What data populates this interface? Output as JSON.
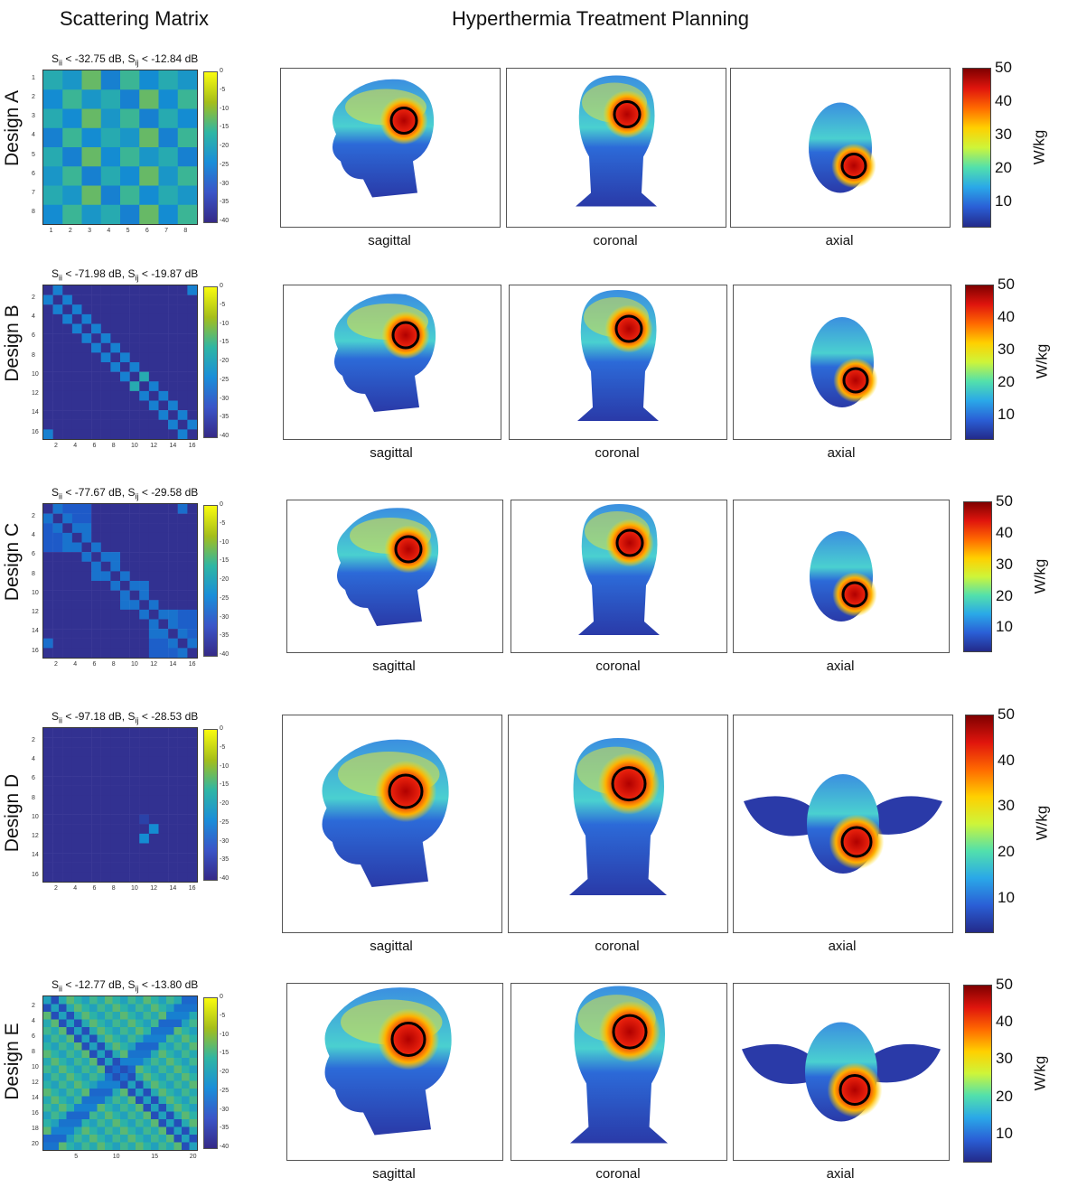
{
  "headers": {
    "left": "Scattering Matrix",
    "right": "Hyperthermia Treatment Planning"
  },
  "colorbar_small_ticks": [
    "0",
    "-5",
    "-10",
    "-15",
    "-20",
    "-25",
    "-30",
    "-35",
    "-40"
  ],
  "colorbar_big": {
    "ticks": [
      "50",
      "40",
      "30",
      "20",
      "10"
    ],
    "unit": "W/kg"
  },
  "views": [
    "sagittal",
    "coronal",
    "axial"
  ],
  "rows": [
    {
      "design": "Design A",
      "sii": "-32.75",
      "sij": "-12.84",
      "n": 8,
      "xticks": [
        "1",
        "2",
        "3",
        "4",
        "5",
        "6",
        "7",
        "8"
      ],
      "yticks": [
        "1",
        "2",
        "3",
        "4",
        "5",
        "6",
        "7",
        "8"
      ]
    },
    {
      "design": "Design B",
      "sii": "-71.98",
      "sij": "-19.87",
      "n": 16,
      "xticks": [
        "2",
        "4",
        "6",
        "8",
        "10",
        "12",
        "14",
        "16"
      ],
      "yticks": [
        "2",
        "4",
        "6",
        "8",
        "10",
        "12",
        "14",
        "16"
      ]
    },
    {
      "design": "Design C",
      "sii": "-77.67",
      "sij": "-29.58",
      "n": 16,
      "xticks": [
        "2",
        "4",
        "6",
        "8",
        "10",
        "12",
        "14",
        "16"
      ],
      "yticks": [
        "2",
        "4",
        "6",
        "8",
        "10",
        "12",
        "14",
        "16"
      ]
    },
    {
      "design": "Design D",
      "sii": "-97.18",
      "sij": "-28.53",
      "n": 16,
      "xticks": [
        "2",
        "4",
        "6",
        "8",
        "10",
        "12",
        "14",
        "16"
      ],
      "yticks": [
        "2",
        "4",
        "6",
        "8",
        "10",
        "12",
        "14",
        "16"
      ]
    },
    {
      "design": "Design E",
      "sii": "-12.77",
      "sij": "-13.80",
      "n": 20,
      "xticks": [
        "5",
        "10",
        "15",
        "20"
      ],
      "yticks": [
        "2",
        "4",
        "6",
        "8",
        "10",
        "12",
        "14",
        "16",
        "18",
        "20"
      ]
    }
  ],
  "text": {
    "lt": "<",
    "db": "dB",
    "comma": ",",
    "s": "S"
  },
  "colors": {
    "bg_matrix": "#352a87",
    "hot": "#e0150d",
    "ring": "#000000"
  }
}
